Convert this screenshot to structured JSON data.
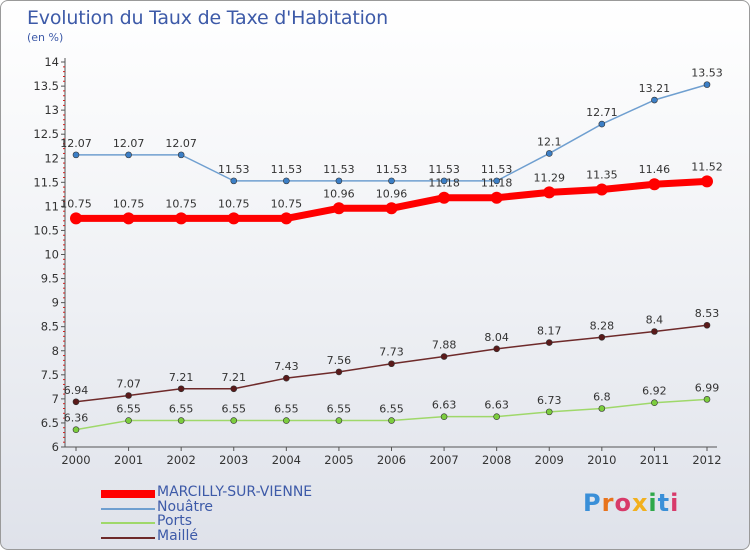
{
  "title": "Evolution du Taux de Taxe d'Habitation",
  "subtitle": "(en %)",
  "logo": {
    "text": "Proxiti",
    "colors": [
      "#3a8fd8",
      "#e8731c",
      "#d83a6a",
      "#f2b01e",
      "#2fa84a",
      "#3a8fd8",
      "#d83a6a"
    ]
  },
  "chart_data": {
    "type": "line",
    "title": "Evolution du Taux de Taxe d'Habitation",
    "subtitle": "(en %)",
    "xlabel": "",
    "ylabel": "",
    "ylim": [
      6,
      14
    ],
    "yticks": [
      6,
      6.5,
      7,
      7.5,
      8,
      8.5,
      9,
      9.5,
      10,
      10.5,
      11,
      11.5,
      12,
      12.5,
      13,
      13.5,
      14
    ],
    "categories": [
      "2000",
      "2001",
      "2002",
      "2003",
      "2004",
      "2005",
      "2006",
      "2007",
      "2008",
      "2009",
      "2010",
      "2011",
      "2012"
    ],
    "grid": false,
    "legend_position": "bottom-left",
    "series": [
      {
        "name": "MARCILLY-SUR-VIENNE",
        "color": "#ff0000",
        "marker_color": "#ff0000",
        "values": [
          10.75,
          10.75,
          10.75,
          10.75,
          10.75,
          10.96,
          10.96,
          11.18,
          11.18,
          11.29,
          11.35,
          11.46,
          11.52
        ],
        "labels": [
          "10.75",
          "10.75",
          "10.75",
          "10.75",
          "10.75",
          "10.96",
          "10.96",
          "11.18",
          "11.18",
          "11.29",
          "11.35",
          "11.46",
          "11.52"
        ]
      },
      {
        "name": "Nouâtre",
        "color": "#6f9fd0",
        "marker_color": "#3c7fc6",
        "values": [
          12.07,
          12.07,
          12.07,
          11.53,
          11.53,
          11.53,
          11.53,
          11.53,
          11.53,
          12.1,
          12.71,
          13.21,
          13.53
        ],
        "labels": [
          "12.07",
          "12.07",
          "12.07",
          "11.53",
          "11.53",
          "11.53",
          "11.53",
          "11.53",
          "11.53",
          "12.1",
          "12.71",
          "13.21",
          "13.53"
        ]
      },
      {
        "name": "Ports",
        "color": "#9fd86a",
        "marker_color": "#7ccd3e",
        "values": [
          6.36,
          6.55,
          6.55,
          6.55,
          6.55,
          6.55,
          6.55,
          6.63,
          6.63,
          6.73,
          6.8,
          6.92,
          6.99
        ],
        "labels": [
          "6.36",
          "6.55",
          "6.55",
          "6.55",
          "6.55",
          "6.55",
          "6.55",
          "6.63",
          "6.63",
          "6.73",
          "6.8",
          "6.92",
          "6.99"
        ]
      },
      {
        "name": "Maillé",
        "color": "#6e2a2a",
        "marker_color": "#5a1a1a",
        "values": [
          6.94,
          7.07,
          7.21,
          7.21,
          7.43,
          7.56,
          7.73,
          7.88,
          8.04,
          8.17,
          8.28,
          8.4,
          8.53
        ],
        "labels": [
          "6.94",
          "7.07",
          "7.21",
          "7.21",
          "7.43",
          "7.56",
          "7.73",
          "7.88",
          "8.04",
          "8.17",
          "8.28",
          "8.4",
          "8.53"
        ]
      }
    ]
  }
}
